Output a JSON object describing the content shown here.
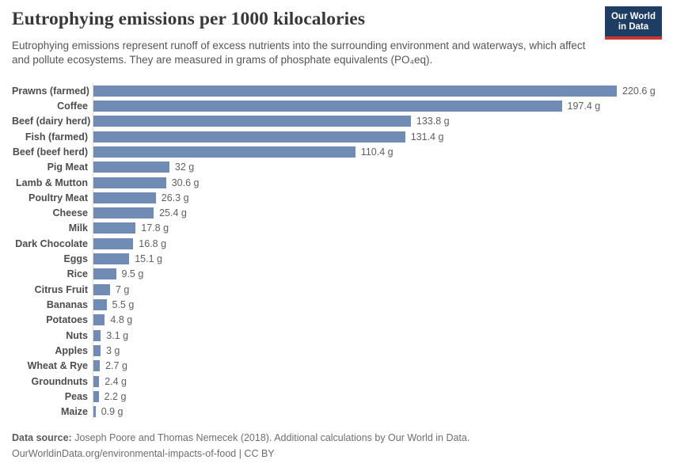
{
  "header": {
    "title": "Eutrophying emissions per 1000 kilocalories",
    "subtitle": "Eutrophying emissions represent runoff of excess nutrients into the surrounding environment and waterways, which affect and pollute ecosystems. They are measured in grams of phosphate equivalents (PO₄eq).",
    "logo": {
      "line1": "Our World",
      "line2": "in Data"
    }
  },
  "chart_data": {
    "type": "bar",
    "orientation": "horizontal",
    "title": "Eutrophying emissions per 1000 kilocalories",
    "unit": "g",
    "xlim": [
      0,
      230
    ],
    "grid": false,
    "legend": "none",
    "bar_color": "#708cb5",
    "categories": [
      "Prawns (farmed)",
      "Coffee",
      "Beef (dairy herd)",
      "Fish (farmed)",
      "Beef (beef herd)",
      "Pig Meat",
      "Lamb & Mutton",
      "Poultry Meat",
      "Cheese",
      "Milk",
      "Dark Chocolate",
      "Eggs",
      "Rice",
      "Citrus Fruit",
      "Bananas",
      "Potatoes",
      "Nuts",
      "Apples",
      "Wheat & Rye",
      "Groundnuts",
      "Peas",
      "Maize"
    ],
    "values": [
      220.6,
      197.4,
      133.8,
      131.4,
      110.4,
      32,
      30.6,
      26.3,
      25.4,
      17.8,
      16.8,
      15.1,
      9.5,
      7,
      5.5,
      4.8,
      3.1,
      3,
      2.7,
      2.4,
      2.2,
      0.9
    ],
    "value_labels": [
      "220.6 g",
      "197.4 g",
      "133.8 g",
      "131.4 g",
      "110.4 g",
      "32 g",
      "30.6 g",
      "26.3 g",
      "25.4 g",
      "17.8 g",
      "16.8 g",
      "15.1 g",
      "9.5 g",
      "7 g",
      "5.5 g",
      "4.8 g",
      "3.1 g",
      "3 g",
      "2.7 g",
      "2.4 g",
      "2.2 g",
      "0.9 g"
    ]
  },
  "footer": {
    "source_label": "Data source:",
    "source_text": " Joseph Poore and Thomas Nemecek (2018). Additional calculations by Our World in Data.",
    "license_line": "OurWorldinData.org/environmental-impacts-of-food | CC BY"
  },
  "colors": {
    "bar": "#708cb5",
    "logo_background": "#1d3d63",
    "logo_stripe": "#cc3333"
  }
}
